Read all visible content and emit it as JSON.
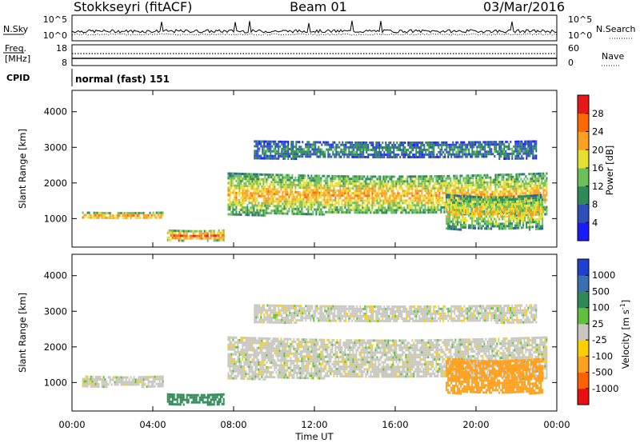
{
  "header": {
    "station": "Stokkseyri (fitACF)",
    "beam": "Beam 01",
    "date": "03/Mar/2016"
  },
  "summary_panels": {
    "nsky_label": "N.Sky",
    "nsky_top": "10^5",
    "nsky_bottom": "10^0",
    "nsearch_label": "N.Search",
    "nsearch_top": "10^5",
    "nsearch_bottom": "10^0",
    "freq_label_1": "Freq.",
    "freq_label_2": "[MHz]",
    "freq_top": "18",
    "freq_bottom": "8",
    "nave_label": "Nave",
    "nave_top": "60",
    "nave_bottom": "0",
    "cpid_label": "CPID",
    "cpid_value": "normal (fast) 151"
  },
  "chart_data": [
    {
      "type": "heatmap",
      "panel": "power",
      "ylabel": "Slant Range [km]",
      "y_ticks": [
        "1000",
        "2000",
        "3000",
        "4000"
      ],
      "ylim": [
        200,
        4600
      ],
      "xlim": [
        "00:00",
        "24:00"
      ],
      "colorbar": {
        "label": "Power [dB]",
        "ticks": [
          "4",
          "8",
          "12",
          "16",
          "20",
          "24",
          "28"
        ],
        "range": [
          0,
          32
        ],
        "colors": [
          "#1a1aff",
          "#2f4fb8",
          "#2e8b57",
          "#6cc05a",
          "#e8e030",
          "#ffa020",
          "#ff6a00",
          "#e81818"
        ]
      },
      "echo_regions": [
        {
          "t_start": 0.5,
          "t_end": 4.5,
          "range_start": 1000,
          "range_end": 1200,
          "power": 24
        },
        {
          "t_start": 4.7,
          "t_end": 7.5,
          "range_start": 400,
          "range_end": 700,
          "power": 26
        },
        {
          "t_start": 7.7,
          "t_end": 23.5,
          "range_start": 1100,
          "range_end": 2300,
          "power": 20
        },
        {
          "t_start": 9.0,
          "t_end": 23.0,
          "range_start": 2700,
          "range_end": 3200,
          "power": 8
        },
        {
          "t_start": 18.5,
          "t_end": 23.3,
          "range_start": 700,
          "range_end": 1700,
          "power": 18
        }
      ]
    },
    {
      "type": "heatmap",
      "panel": "velocity",
      "ylabel": "Slant Range [km]",
      "y_ticks": [
        "1000",
        "2000",
        "3000",
        "4000"
      ],
      "ylim": [
        200,
        4600
      ],
      "xlim": [
        "00:00",
        "24:00"
      ],
      "colorbar": {
        "label": "Velocity [m s^-1]",
        "ticks": [
          "1000",
          "500",
          "100",
          "25",
          "-25",
          "-100",
          "-500",
          "-1000"
        ],
        "colors": [
          "#2040d0",
          "#3a70b0",
          "#2e8b57",
          "#5fc040",
          "#c8c8c0",
          "#ffd000",
          "#ffa020",
          "#ff6000",
          "#e81010"
        ]
      },
      "echo_regions": [
        {
          "t_start": 0.5,
          "t_end": 4.5,
          "range_start": 900,
          "range_end": 1200,
          "velocity": 0
        },
        {
          "t_start": 4.7,
          "t_end": 7.5,
          "range_start": 400,
          "range_end": 700,
          "velocity": 150
        },
        {
          "t_start": 7.7,
          "t_end": 23.5,
          "range_start": 1100,
          "range_end": 2300,
          "velocity": 0
        },
        {
          "t_start": 9.0,
          "t_end": 23.0,
          "range_start": 2700,
          "range_end": 3200,
          "velocity": 0
        },
        {
          "t_start": 18.5,
          "t_end": 23.3,
          "range_start": 700,
          "range_end": 1700,
          "velocity": -300
        }
      ]
    }
  ],
  "x_axis": {
    "label": "Time UT",
    "ticks": [
      "00:00",
      "04:00",
      "08:00",
      "12:00",
      "16:00",
      "20:00",
      "00:00"
    ]
  }
}
